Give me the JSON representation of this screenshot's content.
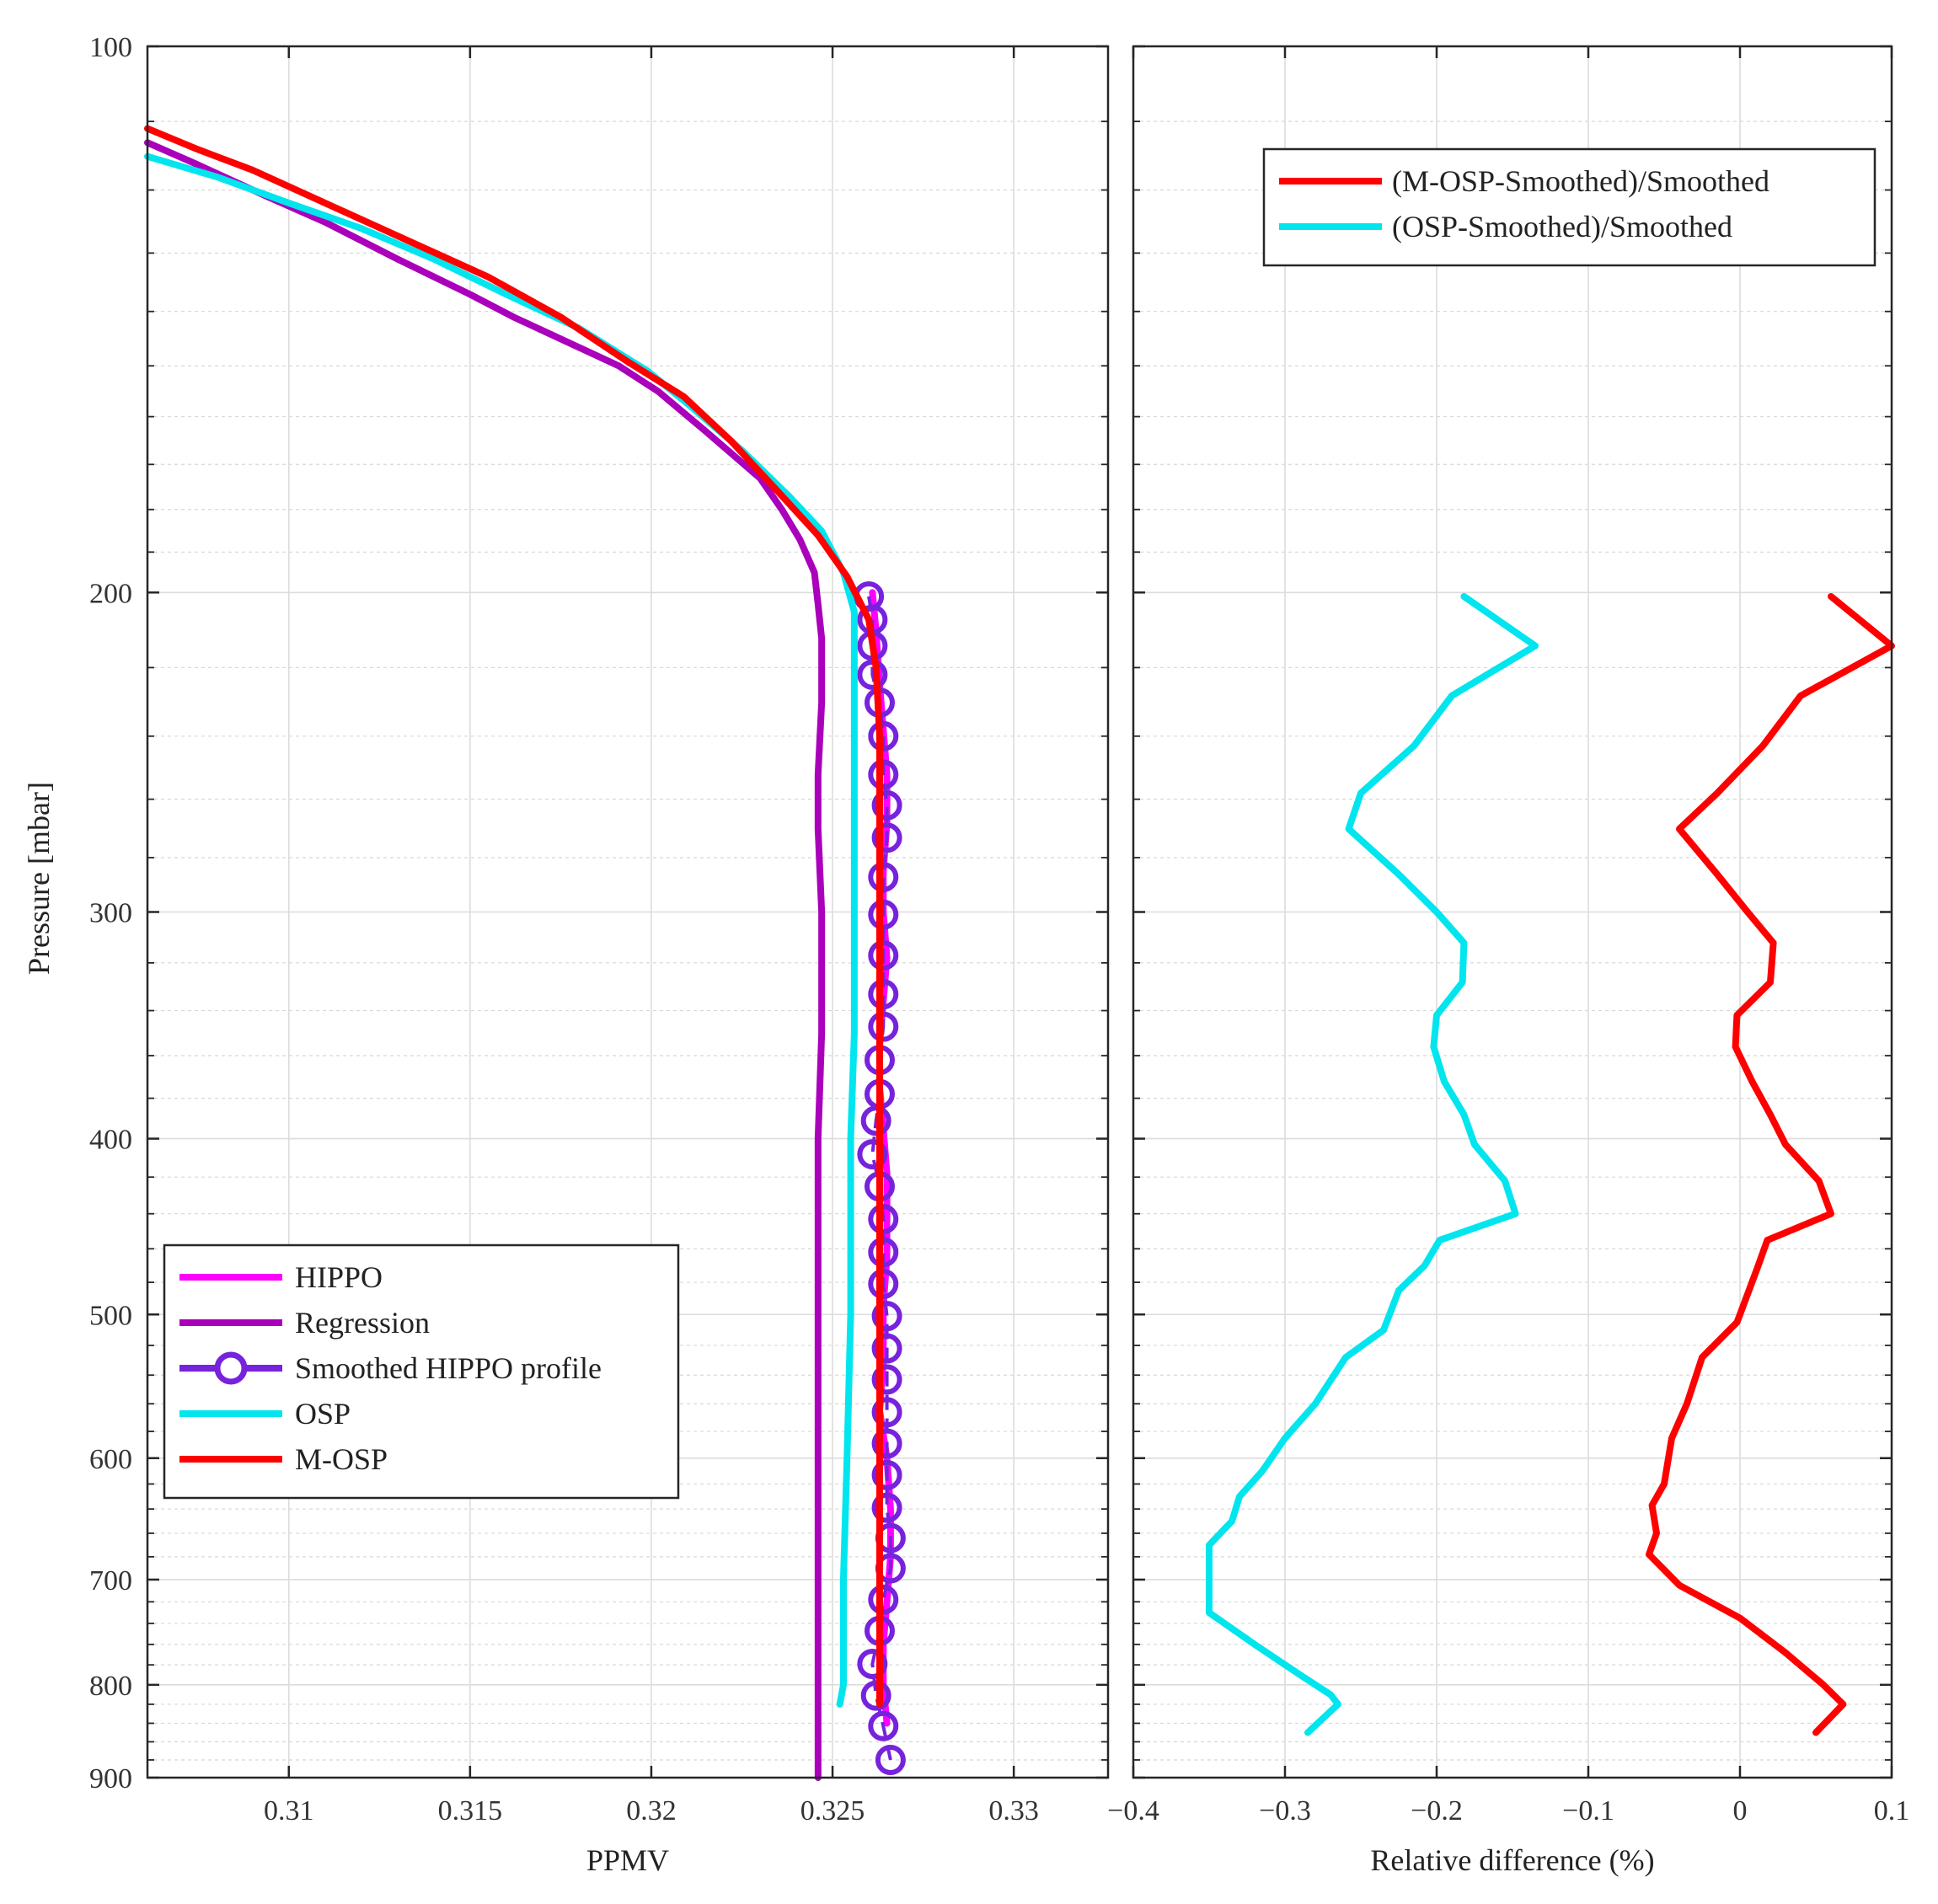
{
  "chart_data": [
    {
      "type": "line",
      "panel": "left",
      "xlabel": "PPMV",
      "ylabel": "Pressure [mbar]",
      "xlim": [
        0.3061,
        0.3326
      ],
      "ylim": [
        100,
        900
      ],
      "yscale": "log",
      "yreverse": true,
      "grid": true,
      "xticks": [
        0.31,
        0.315,
        0.32,
        0.325,
        0.33
      ],
      "xtick_labels": [
        "0.31",
        "0.315",
        "0.32",
        "0.325",
        "0.33"
      ],
      "yticks": [
        100,
        200,
        300,
        400,
        500,
        600,
        700,
        800,
        900
      ],
      "ytick_labels": [
        "100",
        "200",
        "300",
        "400",
        "500",
        "600",
        "700",
        "800",
        "900"
      ],
      "legend_position": "bottom-left",
      "series": [
        {
          "name": "HIPPO",
          "color": "#ff00ff",
          "style": "line",
          "x": [
            0.3261,
            0.3262,
            0.3263,
            0.3264,
            0.3265,
            0.3265,
            0.3264,
            0.3264,
            0.3265,
            0.3264,
            0.3263,
            0.3263,
            0.3264,
            0.3265,
            0.3265,
            0.3265,
            0.3264,
            0.3264,
            0.3263,
            0.3265,
            0.3266,
            0.3266,
            0.3265,
            0.3264,
            0.3264,
            0.3265
          ],
          "y": [
            200,
            210,
            225,
            238,
            252,
            268,
            285,
            300,
            318,
            336,
            355,
            375,
            395,
            418,
            440,
            465,
            495,
            530,
            565,
            600,
            640,
            680,
            720,
            760,
            800,
            840
          ]
        },
        {
          "name": "Regression",
          "color": "#aa00bb",
          "style": "line",
          "x": [
            0.3061,
            0.3074,
            0.3094,
            0.311,
            0.313,
            0.315,
            0.3162,
            0.3191,
            0.3202,
            0.3215,
            0.323,
            0.3236,
            0.3241,
            0.3245,
            0.3246,
            0.3247,
            0.3247,
            0.3246,
            0.3246,
            0.3247,
            0.3247,
            0.3246,
            0.3246,
            0.3246,
            0.3246,
            0.3246,
            0.3246,
            0.3246
          ],
          "y": [
            113,
            116,
            121,
            125,
            131,
            137,
            141,
            150,
            155,
            163,
            173,
            180,
            187,
            195,
            203,
            212,
            230,
            252,
            270,
            300,
            350,
            400,
            450,
            500,
            600,
            700,
            800,
            900
          ]
        },
        {
          "name": "Smoothed HIPPO profile",
          "color": "#7722dd",
          "style": "circles",
          "x": [
            0.326,
            0.3261,
            0.3261,
            0.3261,
            0.3263,
            0.3264,
            0.3264,
            0.3265,
            0.3265,
            0.3264,
            0.3264,
            0.3264,
            0.3264,
            0.3264,
            0.3263,
            0.3263,
            0.3262,
            0.3261,
            0.3263,
            0.3264,
            0.3264,
            0.3264,
            0.3265,
            0.3265,
            0.3265,
            0.3265,
            0.3265,
            0.3265,
            0.3265,
            0.3266,
            0.3266,
            0.3264,
            0.3263,
            0.3261,
            0.3262,
            0.3264,
            0.3266
          ],
          "y": [
            201,
            207,
            214,
            222,
            230,
            240,
            252,
            262,
            273,
            287,
            301,
            317,
            333,
            347,
            362,
            378,
            391,
            408,
            425,
            443,
            462,
            481,
            501,
            522,
            543,
            566,
            589,
            613,
            639,
            664,
            690,
            718,
            747,
            779,
            811,
            843,
            880
          ]
        },
        {
          "name": "OSP",
          "color": "#00e5ee",
          "style": "line",
          "x": [
            0.3061,
            0.308,
            0.31,
            0.312,
            0.314,
            0.316,
            0.318,
            0.3199,
            0.3211,
            0.3225,
            0.3238,
            0.3247,
            0.3253,
            0.3256,
            0.3256,
            0.3256,
            0.3256,
            0.3256,
            0.3256,
            0.3255,
            0.3255,
            0.3254,
            0.3253,
            0.3253,
            0.3252
          ],
          "y": [
            115,
            118,
            122,
            126,
            131,
            137,
            143,
            151,
            158,
            167,
            177,
            185,
            195,
            205,
            220,
            240,
            270,
            300,
            350,
            400,
            500,
            600,
            700,
            800,
            820
          ]
        },
        {
          "name": "M-OSP",
          "color": "#ff0000",
          "style": "line",
          "x": [
            0.3061,
            0.3075,
            0.309,
            0.311,
            0.3133,
            0.3155,
            0.3175,
            0.3193,
            0.3209,
            0.3222,
            0.3235,
            0.3246,
            0.3254,
            0.326,
            0.3262,
            0.3263,
            0.3263,
            0.3263,
            0.3263,
            0.3263,
            0.3263,
            0.3263,
            0.3263,
            0.3263,
            0.3263
          ],
          "y": [
            111,
            114,
            117,
            122,
            128,
            134,
            141,
            149,
            156,
            165,
            176,
            186,
            196,
            207,
            220,
            240,
            270,
            300,
            350,
            400,
            500,
            600,
            700,
            800,
            820
          ]
        }
      ]
    },
    {
      "type": "line",
      "panel": "right",
      "xlabel": "Relative difference (%)",
      "ylabel": "",
      "xlim": [
        -0.4,
        0.1
      ],
      "ylim": [
        100,
        900
      ],
      "yscale": "log",
      "yreverse": true,
      "grid": true,
      "xticks": [
        -0.4,
        -0.3,
        -0.2,
        -0.1,
        0,
        0.1
      ],
      "xtick_labels": [
        "−0.4",
        "−0.3",
        "−0.2",
        "−0.1",
        "0",
        "0.1"
      ],
      "legend_position": "top-right",
      "series": [
        {
          "name": "(M-OSP-Smoothed)/Smoothed",
          "color": "#ff0000",
          "x": [
            0.06,
            0.1,
            0.04,
            0.015,
            -0.015,
            -0.04,
            -0.015,
            0.005,
            0.022,
            0.02,
            -0.002,
            -0.003,
            0.008,
            0.02,
            0.03,
            0.052,
            0.06,
            0.018,
            0.012,
            0.0,
            -0.002,
            -0.025,
            -0.035,
            -0.045,
            -0.05,
            -0.058,
            -0.055,
            -0.06,
            -0.04,
            0.0,
            0.03,
            0.055,
            0.068,
            0.05
          ],
          "y": [
            201,
            214,
            228,
            243,
            258,
            270,
            286,
            300,
            312,
            328,
            342,
            356,
            372,
            388,
            403,
            422,
            440,
            455,
            470,
            500,
            505,
            528,
            560,
            585,
            620,
            637,
            660,
            678,
            705,
            735,
            768,
            800,
            820,
            850
          ]
        },
        {
          "name": "(OSP-Smoothed)/Smoothed",
          "color": "#00e5ee",
          "x": [
            -0.182,
            -0.135,
            -0.19,
            -0.215,
            -0.25,
            -0.258,
            -0.225,
            -0.2,
            -0.182,
            -0.183,
            -0.2,
            -0.202,
            -0.195,
            -0.182,
            -0.175,
            -0.155,
            -0.148,
            -0.198,
            -0.208,
            -0.225,
            -0.235,
            -0.26,
            -0.28,
            -0.3,
            -0.315,
            -0.33,
            -0.335,
            -0.35,
            -0.35,
            -0.35,
            -0.32,
            -0.29,
            -0.27,
            -0.265,
            -0.285
          ],
          "y": [
            201,
            214,
            228,
            243,
            258,
            270,
            286,
            300,
            312,
            328,
            342,
            356,
            372,
            388,
            403,
            422,
            440,
            455,
            470,
            485,
            510,
            528,
            560,
            585,
            610,
            630,
            650,
            670,
            700,
            730,
            760,
            790,
            810,
            820,
            850
          ]
        }
      ]
    }
  ],
  "legend_left": {
    "items": [
      {
        "label": "HIPPO",
        "color": "#ff00ff",
        "marker": "none"
      },
      {
        "label": "Regression",
        "color": "#aa00bb",
        "marker": "none"
      },
      {
        "label": "Smoothed HIPPO profile",
        "color": "#7722dd",
        "marker": "circle"
      },
      {
        "label": "OSP",
        "color": "#00e5ee",
        "marker": "none"
      },
      {
        "label": "M-OSP",
        "color": "#ff0000",
        "marker": "none"
      }
    ]
  },
  "legend_right": {
    "items": [
      {
        "label": "(M-OSP-Smoothed)/Smoothed",
        "color": "#ff0000"
      },
      {
        "label": "(OSP-Smoothed)/Smoothed",
        "color": "#00e5ee"
      }
    ]
  }
}
